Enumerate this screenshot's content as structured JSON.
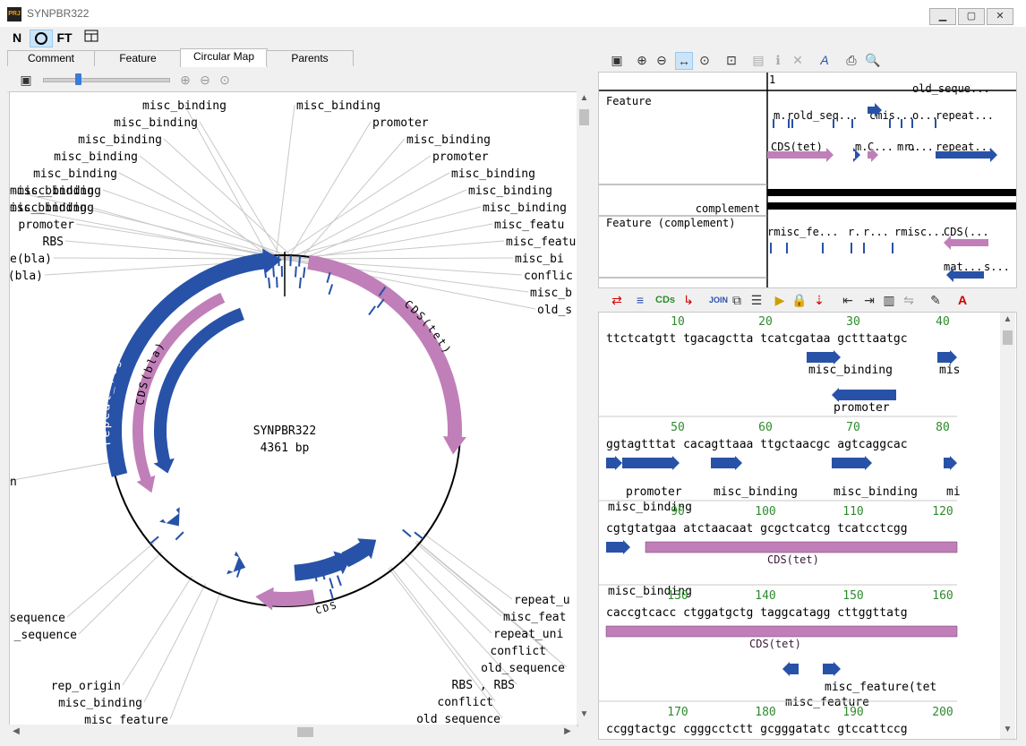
{
  "window": {
    "title": "SYNPBR322",
    "app_icon": "PRJ"
  },
  "main_toolbar": [
    "N",
    "O",
    "FT",
    "table-icon"
  ],
  "tabs": [
    "Comment",
    "Feature",
    "Circular Map",
    "Parents"
  ],
  "active_tab": "Circular Map",
  "circular_map": {
    "name": "SYNPBR322",
    "length": "4361 bp",
    "labels": [
      "misc_binding",
      "misc_binding",
      "misc_binding",
      "promoter",
      "misc_binding",
      "misc_binding",
      "misc_binding",
      "promoter",
      "misc_binding",
      "misc_binding",
      "misc_binding",
      "misc_binding",
      "misc_binding",
      "misc_binding",
      "misc_binding",
      "misc_binding",
      "promoter",
      "misc_featu",
      "RBS",
      "misc_featu",
      "e(bla)",
      "misc_bi",
      "(bla)",
      "conflic",
      "misc_b",
      "old_s",
      "n",
      "sequence",
      "_sequence",
      "rep_origin",
      "misc_binding",
      "misc_feature",
      "repeat_u",
      "misc_feat",
      "repeat_uni",
      "conflict",
      "old_sequence",
      "RBS , RBS",
      "conflict",
      "old_sequence"
    ],
    "arc_labels": [
      "repeat_region",
      "CDS(bla)",
      "CDS(tet)",
      "CDS"
    ]
  },
  "feature_view": {
    "ruler_start": "1",
    "rows": [
      "Feature",
      "complement",
      "Feature  (complement)"
    ],
    "direct_labels": [
      "old_seque...",
      "m.",
      "rold_seq...",
      "cmis...",
      "o...",
      "repeat...",
      "CDS(tet)",
      "m.",
      "C...",
      "mr.",
      "o...",
      "repeat..."
    ],
    "complement_labels": [
      "rmisc_fe...",
      "r.",
      "r...",
      "rmisc...",
      "CDS(...",
      "mat...",
      "s..."
    ]
  },
  "sequence_view": {
    "blocks": [
      {
        "ticks": [
          "10",
          "20",
          "30",
          "40"
        ],
        "seq": "ttctcatgtt tgacagctta tcatcgataa gctttaatgc",
        "labels": [
          "misc_binding",
          "mis",
          "promoter"
        ]
      },
      {
        "ticks": [
          "50",
          "60",
          "70",
          "80"
        ],
        "seq": "ggtagtttat cacagttaaa ttgctaacgc agtcaggcac",
        "labels": [
          "promoter",
          "misc_binding",
          "misc_binding",
          "mi",
          "misc_binding"
        ]
      },
      {
        "ticks": [
          "90",
          "100",
          "110",
          "120"
        ],
        "seq": "cgtgtatgaa atctaacaat gcgctcatcg tcatcctcgg",
        "labels": [
          "CDS(tet)",
          "misc_binding"
        ]
      },
      {
        "ticks": [
          "130",
          "140",
          "150",
          "160"
        ],
        "seq": "caccgtcacc ctggatgctg taggcatagg cttggttatg",
        "labels": [
          "CDS(tet)",
          "misc_feature(tet",
          "misc_feature"
        ]
      },
      {
        "ticks": [
          "170",
          "180",
          "190",
          "200"
        ],
        "seq": "ccggtactgc cgggcctctt gcgggatatc gtccattccg",
        "labels": []
      }
    ]
  },
  "colors": {
    "forward": "#2752a8",
    "cds": "#c07fb8",
    "tick": "#2e8b2e",
    "black": "#000000"
  }
}
